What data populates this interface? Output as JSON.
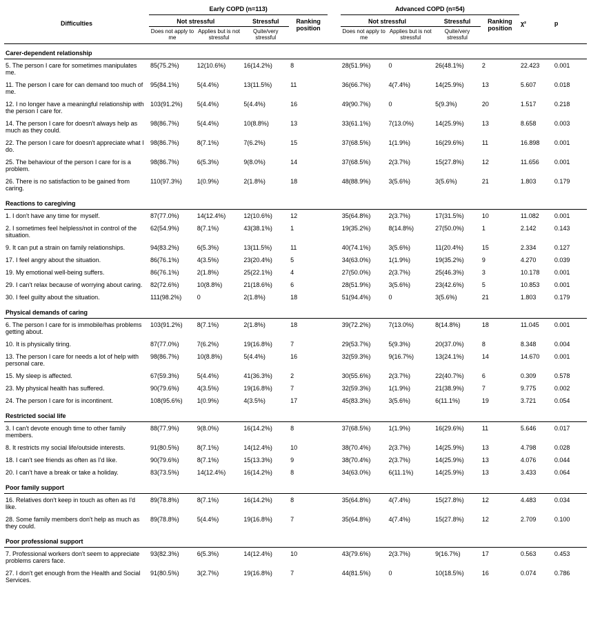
{
  "labels": {
    "difficulties": "Difficulties",
    "early_group": "Early COPD (n=113)",
    "adv_group": "Advanced COPD (n=54)",
    "not_stressful": "Not stressful",
    "stressful": "Stressful",
    "ranking": "Ranking position",
    "chi2": "χ²",
    "p": "p",
    "does_not_apply": "Does not apply to me",
    "applies_not_stress": "Applies but is not stressful",
    "quite_very": "Quite/very stressful"
  },
  "sections": [
    {
      "title": "Carer-dependent relationship",
      "rows": [
        {
          "label": "5. The person I care for sometimes manipulates me.",
          "e1": "85(75.2%)",
          "e2": "12(10.6%)",
          "e3": "16(14.2%)",
          "er": "8",
          "a1": "28(51.9%)",
          "a2": "0",
          "a3": "26(48.1%)",
          "ar": "2",
          "chi": "22.423",
          "p": "0.001"
        },
        {
          "label": "11. The person I care for can demand too much of me.",
          "e1": "95(84.1%)",
          "e2": "5(4.4%)",
          "e3": "13(11.5%)",
          "er": "11",
          "a1": "36(66.7%)",
          "a2": "4(7.4%)",
          "a3": "14(25.9%)",
          "ar": "13",
          "chi": "5.607",
          "p": "0.018"
        },
        {
          "label": "12. I no longer have a meaningful relationship with the person I care for.",
          "e1": "103(91.2%)",
          "e2": "5(4.4%)",
          "e3": "5(4.4%)",
          "er": "16",
          "a1": "49(90.7%)",
          "a2": "0",
          "a3": "5(9.3%)",
          "ar": "20",
          "chi": "1.517",
          "p": "0.218"
        },
        {
          "label": "14. The person I care for doesn't always help as much as they could.",
          "e1": "98(86.7%)",
          "e2": "5(4.4%)",
          "e3": "10(8.8%)",
          "er": "13",
          "a1": "33(61.1%)",
          "a2": "7(13.0%)",
          "a3": "14(25.9%)",
          "ar": "13",
          "chi": "8.658",
          "p": "0.003"
        },
        {
          "label": "22. The person I care for doesn't appreciate what I do.",
          "e1": "98(86.7%)",
          "e2": "8(7.1%)",
          "e3": "7(6.2%)",
          "er": "15",
          "a1": "37(68.5%)",
          "a2": "1(1.9%)",
          "a3": "16(29.6%)",
          "ar": "11",
          "chi": "16.898",
          "p": "0.001"
        },
        {
          "label": "25. The behaviour of the person I care for is a problem.",
          "e1": "98(86.7%)",
          "e2": "6(5.3%)",
          "e3": "9(8.0%)",
          "er": "14",
          "a1": "37(68.5%)",
          "a2": "2(3.7%)",
          "a3": "15(27.8%)",
          "ar": "12",
          "chi": "11.656",
          "p": "0.001"
        },
        {
          "label": "26. There is no satisfaction to be gained from caring.",
          "e1": "110(97.3%)",
          "e2": "1(0.9%)",
          "e3": "2(1.8%)",
          "er": "18",
          "a1": "48(88.9%)",
          "a2": "3(5.6%)",
          "a3": "3(5.6%)",
          "ar": "21",
          "chi": "1.803",
          "p": "0.179"
        }
      ]
    },
    {
      "title": "Reactions to caregiving",
      "rows": [
        {
          "label": "1. I don't have any time for myself.",
          "e1": "87(77.0%)",
          "e2": "14(12.4%)",
          "e3": "12(10.6%)",
          "er": "12",
          "a1": "35(64.8%)",
          "a2": "2(3.7%)",
          "a3": "17(31.5%)",
          "ar": "10",
          "chi": "11.082",
          "p": "0.001"
        },
        {
          "label": "2. I sometimes feel helpless/not in control of the situation.",
          "e1": "62(54.9%)",
          "e2": "8(7.1%)",
          "e3": "43(38.1%)",
          "er": "1",
          "a1": "19(35.2%)",
          "a2": "8(14.8%)",
          "a3": "27(50.0%)",
          "ar": "1",
          "chi": "2.142",
          "p": "0.143"
        },
        {
          "label": "9. It can put a strain on family relationships.",
          "e1": "94(83.2%)",
          "e2": "6(5.3%)",
          "e3": "13(11.5%)",
          "er": "11",
          "a1": "40(74.1%)",
          "a2": "3(5.6%)",
          "a3": "11(20.4%)",
          "ar": "15",
          "chi": "2.334",
          "p": "0.127"
        },
        {
          "label": "17. I feel angry about the situation.",
          "e1": "86(76.1%)",
          "e2": "4(3.5%)",
          "e3": "23(20.4%)",
          "er": "5",
          "a1": "34(63.0%)",
          "a2": "1(1.9%)",
          "a3": "19(35.2%)",
          "ar": "9",
          "chi": "4.270",
          "p": "0.039"
        },
        {
          "label": "19. My emotional well-being suffers.",
          "e1": "86(76.1%)",
          "e2": "2(1.8%)",
          "e3": "25(22.1%)",
          "er": "4",
          "a1": "27(50.0%)",
          "a2": "2(3.7%)",
          "a3": "25(46.3%)",
          "ar": "3",
          "chi": "10.178",
          "p": "0.001"
        },
        {
          "label": "29. I can't relax because of worrying about caring.",
          "e1": "82(72.6%)",
          "e2": "10(8.8%)",
          "e3": "21(18.6%)",
          "er": "6",
          "a1": "28(51.9%)",
          "a2": "3(5.6%)",
          "a3": "23(42.6%)",
          "ar": "5",
          "chi": "10.853",
          "p": "0.001"
        },
        {
          "label": "30. I feel guilty about the situation.",
          "e1": "111(98.2%)",
          "e2": "0",
          "e3": "2(1.8%)",
          "er": "18",
          "a1": "51(94.4%)",
          "a2": "0",
          "a3": "3(5.6%)",
          "ar": "21",
          "chi": "1.803",
          "p": "0.179"
        }
      ]
    },
    {
      "title": "Physical demands of caring",
      "rows": [
        {
          "label": "6. The person I care for is immobile/has problems getting about.",
          "e1": "103(91.2%)",
          "e2": "8(7.1%)",
          "e3": "2(1.8%)",
          "er": "18",
          "a1": "39(72.2%)",
          "a2": "7(13.0%)",
          "a3": "8(14.8%)",
          "ar": "18",
          "chi": "11.045",
          "p": "0.001"
        },
        {
          "label": "10. It is physically tiring.",
          "e1": "87(77.0%)",
          "e2": "7(6.2%)",
          "e3": "19(16.8%)",
          "er": "7",
          "a1": "29(53.7%)",
          "a2": "5(9.3%)",
          "a3": "20(37.0%)",
          "ar": "8",
          "chi": "8.348",
          "p": "0.004"
        },
        {
          "label": "13. The person I care for needs a lot of help with personal care.",
          "e1": "98(86.7%)",
          "e2": "10(8.8%)",
          "e3": "5(4.4%)",
          "er": "16",
          "a1": "32(59.3%)",
          "a2": "9(16.7%)",
          "a3": "13(24.1%)",
          "ar": "14",
          "chi": "14.670",
          "p": "0.001"
        },
        {
          "label": "15. My sleep is affected.",
          "e1": "67(59.3%)",
          "e2": "5(4.4%)",
          "e3": "41(36.3%)",
          "er": "2",
          "a1": "30(55.6%)",
          "a2": "2(3.7%)",
          "a3": "22(40.7%)",
          "ar": "6",
          "chi": "0.309",
          "p": "0.578"
        },
        {
          "label": "23. My physical health has suffered.",
          "e1": "90(79.6%)",
          "e2": "4(3.5%)",
          "e3": "19(16.8%)",
          "er": "7",
          "a1": "32(59.3%)",
          "a2": "1(1.9%)",
          "a3": "21(38.9%)",
          "ar": "7",
          "chi": "9.775",
          "p": "0.002"
        },
        {
          "label": "24. The person I care for is incontinent.",
          "e1": "108(95.6%)",
          "e2": "1(0.9%)",
          "e3": "4(3.5%)",
          "er": "17",
          "a1": "45(83.3%)",
          "a2": "3(5.6%)",
          "a3": "6(11.1%)",
          "ar": "19",
          "chi": "3.721",
          "p": "0.054"
        }
      ]
    },
    {
      "title": "Restricted social life",
      "rows": [
        {
          "label": "3. I can't devote enough time to other family members.",
          "e1": "88(77.9%)",
          "e2": "9(8.0%)",
          "e3": "16(14.2%)",
          "er": "8",
          "a1": "37(68.5%)",
          "a2": "1(1.9%)",
          "a3": "16(29.6%)",
          "ar": "11",
          "chi": "5.646",
          "p": "0.017"
        },
        {
          "label": "8. It restricts my social life/outside interests.",
          "e1": "91(80.5%)",
          "e2": "8(7.1%)",
          "e3": "14(12.4%)",
          "er": "10",
          "a1": "38(70.4%)",
          "a2": "2(3.7%)",
          "a3": "14(25.9%)",
          "ar": "13",
          "chi": "4.798",
          "p": "0.028"
        },
        {
          "label": "18. I can't see friends as often as I'd like.",
          "e1": "90(79.6%)",
          "e2": "8(7.1%)",
          "e3": "15(13.3%)",
          "er": "9",
          "a1": "38(70.4%)",
          "a2": "2(3.7%)",
          "a3": "14(25.9%)",
          "ar": "13",
          "chi": "4.076",
          "p": "0.044"
        },
        {
          "label": "20. I can't have a break or take a holiday.",
          "e1": "83(73.5%)",
          "e2": "14(12.4%)",
          "e3": "16(14.2%)",
          "er": "8",
          "a1": "34(63.0%)",
          "a2": "6(11.1%)",
          "a3": "14(25.9%)",
          "ar": "13",
          "chi": "3.433",
          "p": "0.064"
        }
      ]
    },
    {
      "title": "Poor family support",
      "rows": [
        {
          "label": "16. Relatives don't keep in touch as often as I'd like.",
          "e1": "89(78.8%)",
          "e2": "8(7.1%)",
          "e3": "16(14.2%)",
          "er": "8",
          "a1": "35(64.8%)",
          "a2": "4(7.4%)",
          "a3": "15(27.8%)",
          "ar": "12",
          "chi": "4.483",
          "p": "0.034"
        },
        {
          "label": "28. Some family members don't help as much as they could.",
          "e1": "89(78.8%)",
          "e2": "5(4.4%)",
          "e3": "19(16.8%)",
          "er": "7",
          "a1": "35(64.8%)",
          "a2": "4(7.4%)",
          "a3": "15(27.8%)",
          "ar": "12",
          "chi": "2.709",
          "p": "0.100"
        }
      ]
    },
    {
      "title": "Poor professional support",
      "rows": [
        {
          "label": "7. Professional workers don't seem to appreciate problems carers face.",
          "e1": "93(82.3%)",
          "e2": "6(5.3%)",
          "e3": "14(12.4%)",
          "er": "10",
          "a1": "43(79.6%)",
          "a2": "2(3.7%)",
          "a3": "9(16.7%)",
          "ar": "17",
          "chi": "0.563",
          "p": "0.453"
        },
        {
          "label": "27. I don't get enough from the Health and Social Services.",
          "e1": "91(80.5%)",
          "e2": "3(2.7%)",
          "e3": "19(16.8%)",
          "er": "7",
          "a1": "44(81.5%)",
          "a2": "0",
          "a3": "10(18.5%)",
          "ar": "16",
          "chi": "0.074",
          "p": "0.786"
        }
      ]
    }
  ]
}
